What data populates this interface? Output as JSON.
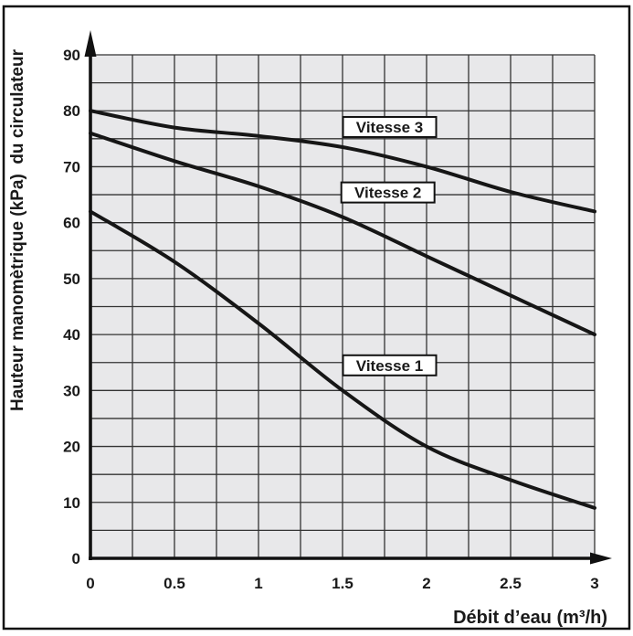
{
  "figure": {
    "kind": "pump-performance-chart",
    "frame_color": "#111111",
    "background": "#ffffff"
  },
  "chart_data": {
    "type": "line",
    "title": "",
    "xlabel": "Débit d’eau (m³/h)",
    "ylabel": "Hauteur manomètrique (kPa)  du circulateur",
    "xlim": [
      0,
      3
    ],
    "ylim": [
      0,
      90
    ],
    "x_grid_step": 0.25,
    "y_grid_step": 5,
    "grid": true,
    "legend_position": "inline-boxed-labels",
    "x_major_ticks": [
      "0",
      "0.5",
      "1",
      "1.5",
      "2",
      "2.5",
      "3"
    ],
    "x_major_values": [
      0,
      0.5,
      1,
      1.5,
      2,
      2.5,
      3
    ],
    "y_major_ticks": [
      "0",
      "10",
      "20",
      "30",
      "40",
      "50",
      "60",
      "70",
      "80",
      "90"
    ],
    "y_major_values": [
      0,
      10,
      20,
      30,
      40,
      50,
      60,
      70,
      80,
      90
    ],
    "x": [
      0,
      0.5,
      1,
      1.5,
      2,
      2.5,
      3
    ],
    "series": [
      {
        "name": "Vitesse 3",
        "values": [
          80,
          77,
          75.5,
          73.5,
          70,
          65.5,
          62
        ],
        "label_anchor": {
          "x": 1.78,
          "y": 77.1
        }
      },
      {
        "name": "Vitesse 2",
        "values": [
          76,
          71,
          66.5,
          61,
          54,
          47,
          40
        ],
        "label_anchor": {
          "x": 1.77,
          "y": 65.4
        }
      },
      {
        "name": "Vitesse 1",
        "values": [
          62,
          53,
          42,
          30,
          20,
          14,
          9
        ],
        "label_anchor": {
          "x": 1.78,
          "y": 34.5
        }
      }
    ],
    "colors": {
      "plot_bg": "#e8e8ea",
      "grid": "#333333",
      "curve": "#161616",
      "axis": "#111111",
      "label_box_bg": "#ffffff",
      "label_box_border": "#111111",
      "text": "#1a1a1a"
    }
  }
}
